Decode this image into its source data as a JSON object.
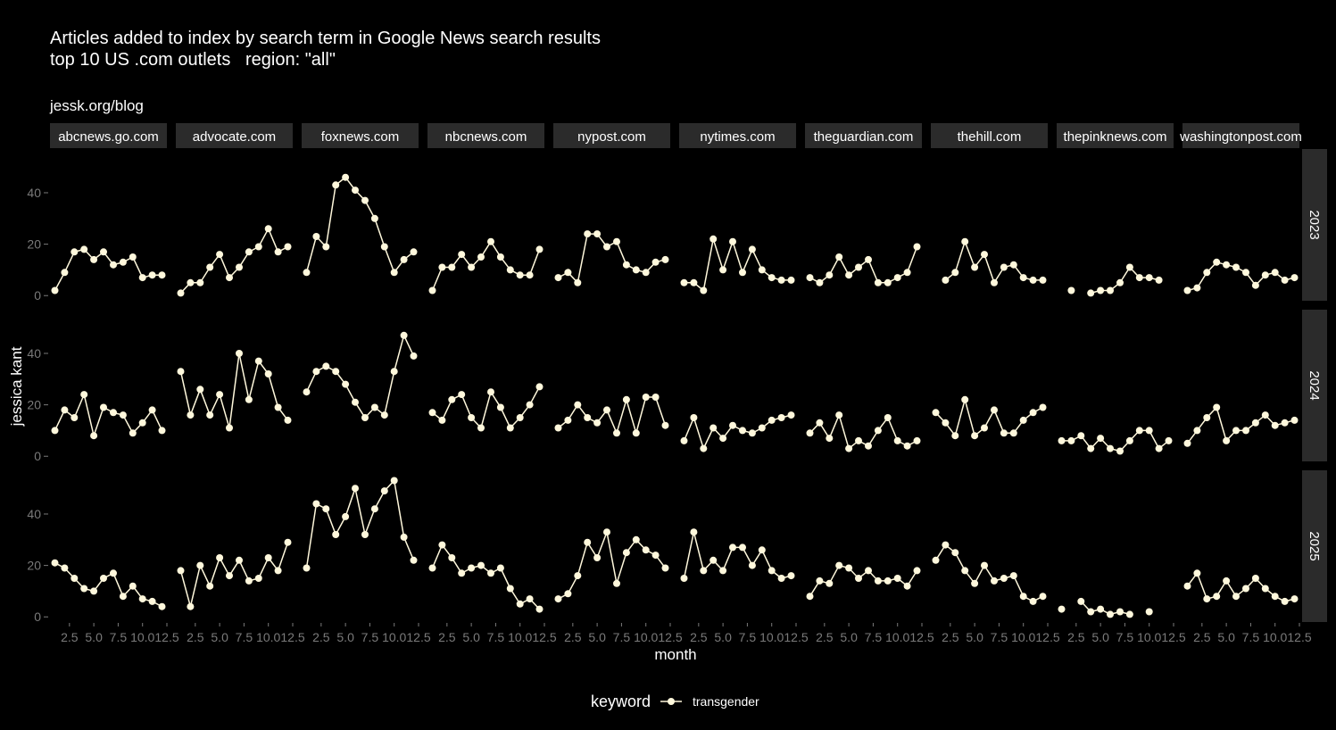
{
  "header": {
    "title_line1": "Articles added to index by search term in Google News search results",
    "title_line2": "top 10 US .com outlets   region: \"all\"",
    "caption": "jessk.org/blog"
  },
  "axes": {
    "xlabel": "month",
    "ylabel": "jessica kant"
  },
  "legend": {
    "title": "keyword",
    "items": [
      "transgender"
    ]
  },
  "colors": {
    "background": "#000000",
    "series": "#fff8dc",
    "strip": "#2b2b2b",
    "tick": "#7a7a7a"
  },
  "chart_data": {
    "type": "line",
    "facet_cols": [
      "abcnews.go.com",
      "advocate.com",
      "foxnews.com",
      "nbcnews.com",
      "nypost.com",
      "nytimes.com",
      "theguardian.com",
      "thehill.com",
      "thepinknews.com",
      "washingtonpost.com"
    ],
    "facet_rows": [
      "2023",
      "2024",
      "2025"
    ],
    "x_ticks": [
      2.5,
      5.0,
      7.5,
      10.0,
      12.5
    ],
    "x_tick_labels": [
      "2.5",
      "5.0",
      "7.5",
      "10.0",
      "12.5"
    ],
    "y_ticks": [
      0,
      20,
      40
    ],
    "y_tick_labels": [
      "0",
      "20",
      "40"
    ],
    "xlim": [
      0.5,
      12.5
    ],
    "ylim": [
      -2,
      57
    ],
    "months": [
      1,
      2,
      3,
      4,
      5,
      6,
      7,
      8,
      9,
      10,
      11,
      12
    ],
    "series_name": "transgender",
    "values": {
      "2023": {
        "abcnews.go.com": [
          2,
          9,
          17,
          18,
          14,
          17,
          12,
          13,
          15,
          7,
          8,
          8
        ],
        "advocate.com": [
          1,
          5,
          5,
          11,
          16,
          7,
          11,
          17,
          19,
          26,
          17,
          19
        ],
        "foxnews.com": [
          9,
          23,
          19,
          43,
          46,
          41,
          37,
          30,
          19,
          9,
          14,
          17
        ],
        "nbcnews.com": [
          2,
          11,
          11,
          16,
          11,
          15,
          21,
          15,
          10,
          8,
          8,
          18
        ],
        "nypost.com": [
          7,
          9,
          5,
          24,
          24,
          19,
          21,
          12,
          10,
          9,
          13,
          14
        ],
        "nytimes.com": [
          5,
          5,
          2,
          22,
          10,
          21,
          9,
          18,
          10,
          7,
          6,
          6
        ],
        "theguardian.com": [
          7,
          5,
          8,
          15,
          8,
          11,
          14,
          5,
          5,
          7,
          9,
          19
        ],
        "thehill.com": [
          null,
          6,
          9,
          21,
          11,
          16,
          5,
          11,
          12,
          7,
          6,
          6
        ],
        "thepinknews.com": [
          null,
          2,
          null,
          1,
          2,
          2,
          5,
          11,
          7,
          7,
          6,
          null
        ],
        "washingtonpost.com": [
          2,
          3,
          9,
          13,
          12,
          11,
          9,
          4,
          8,
          9,
          6,
          7
        ]
      },
      "2024": {
        "abcnews.go.com": [
          10,
          18,
          15,
          24,
          8,
          19,
          17,
          16,
          9,
          13,
          18,
          10
        ],
        "advocate.com": [
          33,
          16,
          26,
          16,
          24,
          11,
          40,
          22,
          37,
          32,
          19,
          14
        ],
        "foxnews.com": [
          25,
          33,
          35,
          33,
          28,
          21,
          15,
          19,
          16,
          33,
          47,
          39
        ],
        "nbcnews.com": [
          17,
          14,
          22,
          24,
          15,
          11,
          25,
          19,
          11,
          15,
          20,
          27
        ],
        "nypost.com": [
          11,
          14,
          20,
          15,
          13,
          18,
          9,
          22,
          9,
          23,
          23,
          12
        ],
        "nytimes.com": [
          6,
          15,
          3,
          11,
          7,
          12,
          10,
          9,
          11,
          14,
          15,
          16
        ],
        "theguardian.com": [
          9,
          13,
          7,
          16,
          3,
          6,
          4,
          10,
          15,
          6,
          4,
          6
        ],
        "thehill.com": [
          17,
          13,
          8,
          22,
          8,
          11,
          18,
          9,
          9,
          14,
          17,
          19
        ],
        "thepinknews.com": [
          6,
          6,
          8,
          3,
          7,
          3,
          2,
          6,
          10,
          10,
          3,
          6
        ],
        "washingtonpost.com": [
          5,
          10,
          15,
          19,
          6,
          10,
          10,
          13,
          16,
          12,
          13,
          14
        ]
      },
      "2025": {
        "abcnews.go.com": [
          21,
          19,
          15,
          11,
          10,
          15,
          17,
          8,
          12,
          7,
          6,
          4
        ],
        "advocate.com": [
          18,
          4,
          20,
          12,
          23,
          16,
          22,
          14,
          15,
          23,
          18,
          29
        ],
        "foxnews.com": [
          19,
          44,
          42,
          32,
          39,
          50,
          32,
          42,
          49,
          53,
          31,
          22
        ],
        "nbcnews.com": [
          19,
          28,
          23,
          17,
          19,
          20,
          17,
          19,
          11,
          5,
          7,
          3
        ],
        "nypost.com": [
          7,
          9,
          16,
          29,
          23,
          33,
          13,
          25,
          30,
          26,
          24,
          19
        ],
        "nytimes.com": [
          15,
          33,
          18,
          22,
          18,
          27,
          27,
          20,
          26,
          18,
          15,
          16
        ],
        "theguardian.com": [
          8,
          14,
          13,
          20,
          19,
          15,
          18,
          14,
          14,
          15,
          12,
          18
        ],
        "thehill.com": [
          22,
          28,
          25,
          18,
          13,
          20,
          14,
          15,
          16,
          8,
          6,
          8
        ],
        "thepinknews.com": [
          3,
          null,
          6,
          2,
          3,
          1,
          2,
          1,
          null,
          2,
          null,
          null
        ],
        "washingtonpost.com": [
          12,
          17,
          7,
          8,
          14,
          8,
          11,
          15,
          11,
          8,
          6,
          7
        ]
      }
    }
  }
}
